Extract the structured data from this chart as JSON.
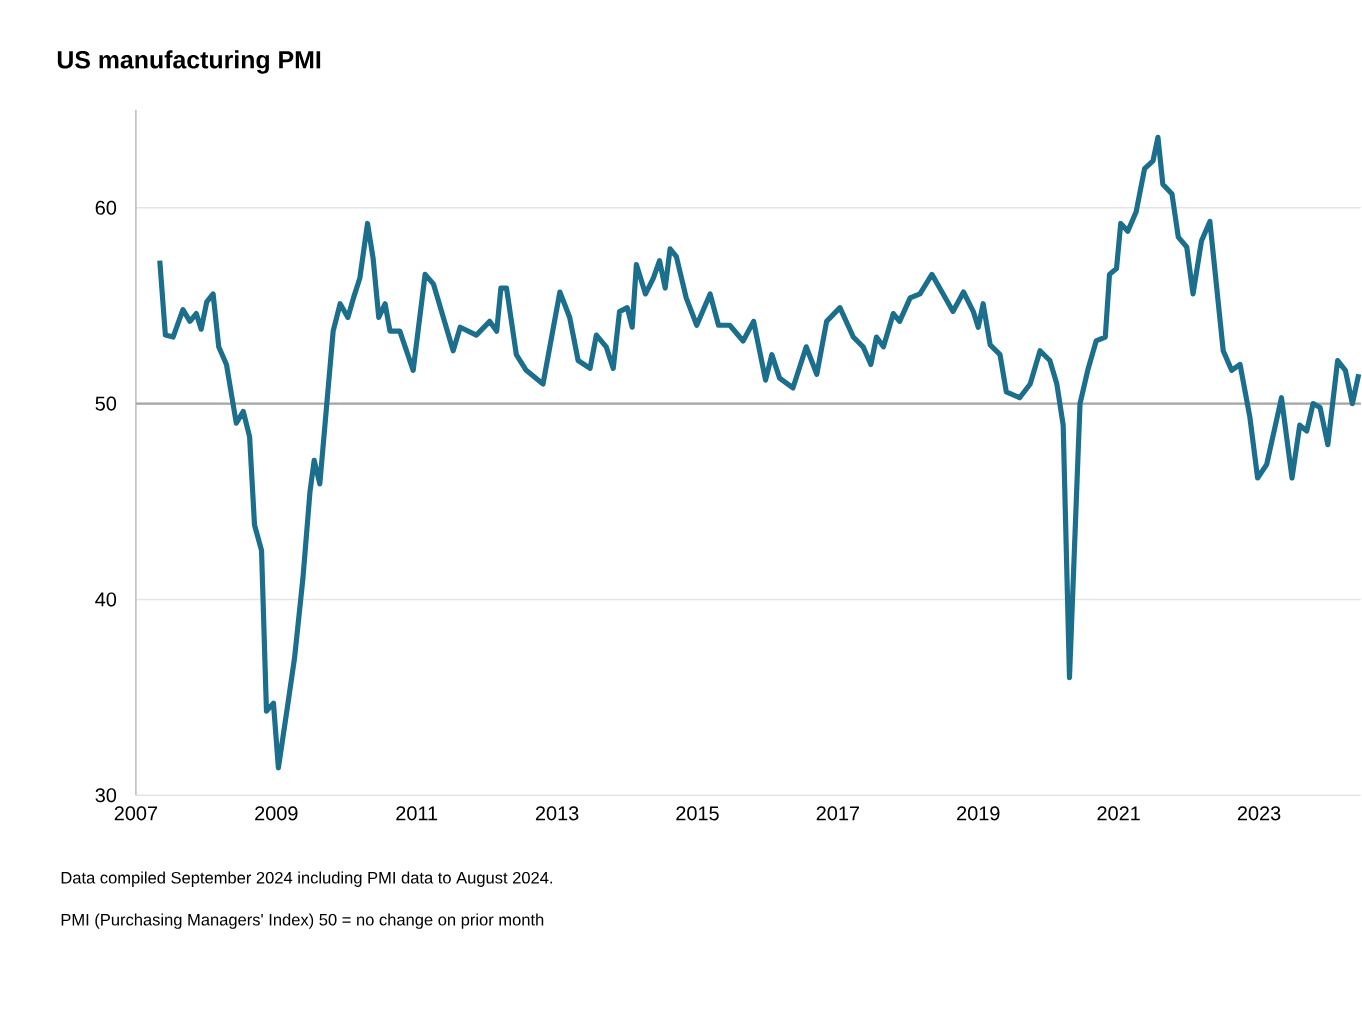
{
  "chart_data": {
    "type": "line",
    "title": "US manufacturing PMI",
    "annotations": [
      "Data compiled September 2024 including PMI data to August 2024.",
      "PMI (Purchasing Managers' Index) 50 = no change on prior month"
    ],
    "xlim": [
      2007,
      2024.45
    ],
    "xticks": [
      2007,
      2009,
      2011,
      2013,
      2015,
      2017,
      2019,
      2021,
      2023
    ],
    "ylim": [
      30,
      65
    ],
    "yticks": [
      30,
      40,
      50,
      60
    ],
    "grid": "y",
    "ref_lines": [
      {
        "axis": "y",
        "value": 50,
        "color": "#a6a6a6"
      }
    ],
    "series": [
      {
        "color": "#1b6f8c",
        "x": [
          2007.34,
          2007.42,
          2007.53,
          2007.67,
          2007.77,
          2007.86,
          2007.93,
          2008.01,
          2008.1,
          2008.18,
          2008.29,
          2008.43,
          2008.53,
          2008.62,
          2008.69,
          2008.79,
          2008.86,
          2008.96,
          2009.03,
          2009.15,
          2009.26,
          2009.38,
          2009.48,
          2009.54,
          2009.62,
          2009.72,
          2009.81,
          2009.91,
          2010.02,
          2010.1,
          2010.19,
          2010.3,
          2010.38,
          2010.46,
          2010.55,
          2010.62,
          2010.76,
          2010.95,
          2011.12,
          2011.24,
          2011.38,
          2011.52,
          2011.62,
          2011.85,
          2012.04,
          2012.14,
          2012.2,
          2012.28,
          2012.42,
          2012.56,
          2012.8,
          2013.04,
          2013.18,
          2013.3,
          2013.47,
          2013.56,
          2013.7,
          2013.8,
          2013.89,
          2014.0,
          2014.07,
          2014.13,
          2014.26,
          2014.37,
          2014.46,
          2014.54,
          2014.61,
          2014.7,
          2014.84,
          2014.99,
          2015.18,
          2015.3,
          2015.46,
          2015.65,
          2015.8,
          2015.97,
          2016.06,
          2016.17,
          2016.36,
          2016.55,
          2016.7,
          2016.84,
          2017.03,
          2017.22,
          2017.36,
          2017.47,
          2017.55,
          2017.65,
          2017.79,
          2017.88,
          2018.03,
          2018.17,
          2018.34,
          2018.5,
          2018.64,
          2018.79,
          2018.93,
          2019.0,
          2019.07,
          2019.17,
          2019.31,
          2019.4,
          2019.59,
          2019.74,
          2019.88,
          2020.02,
          2020.12,
          2020.21,
          2020.3,
          2020.45,
          2020.56,
          2020.68,
          2020.81,
          2020.87,
          2020.97,
          2021.03,
          2021.13,
          2021.25,
          2021.37,
          2021.49,
          2021.56,
          2021.63,
          2021.76,
          2021.85,
          2021.97,
          2022.06,
          2022.18,
          2022.3,
          2022.49,
          2022.61,
          2022.73,
          2022.87,
          2022.98,
          2023.11,
          2023.32,
          2023.47,
          2023.58,
          2023.68,
          2023.77,
          2023.87,
          2023.98,
          2024.12,
          2024.23,
          2024.33,
          2024.42
        ],
        "values": [
          57.3,
          53.5,
          53.4,
          54.8,
          54.2,
          54.6,
          53.8,
          55.2,
          55.6,
          52.9,
          52.0,
          49.0,
          49.6,
          48.3,
          43.8,
          42.5,
          34.3,
          34.7,
          31.4,
          34.3,
          37.0,
          41.1,
          45.5,
          47.1,
          45.9,
          50.0,
          53.7,
          55.1,
          54.4,
          55.4,
          56.4,
          59.2,
          57.4,
          54.4,
          55.1,
          53.7,
          53.7,
          51.7,
          56.6,
          56.1,
          54.4,
          52.7,
          53.9,
          53.5,
          54.2,
          53.7,
          55.9,
          55.9,
          52.5,
          51.7,
          51.0,
          55.7,
          54.4,
          52.2,
          51.8,
          53.5,
          52.9,
          51.8,
          54.7,
          54.9,
          53.9,
          57.1,
          55.6,
          56.4,
          57.3,
          55.9,
          57.9,
          57.5,
          55.4,
          54.0,
          55.6,
          54.0,
          54.0,
          53.2,
          54.2,
          51.2,
          52.5,
          51.3,
          50.8,
          52.9,
          51.5,
          54.2,
          54.9,
          53.4,
          52.9,
          52.0,
          53.4,
          52.9,
          54.6,
          54.2,
          55.4,
          55.6,
          56.6,
          55.6,
          54.7,
          55.7,
          54.7,
          53.9,
          55.1,
          53.0,
          52.5,
          50.6,
          50.3,
          51.0,
          52.7,
          52.2,
          51.0,
          48.9,
          36.0,
          50.0,
          51.7,
          53.2,
          53.4,
          56.6,
          56.9,
          59.2,
          58.8,
          59.8,
          62.0,
          62.4,
          63.6,
          61.2,
          60.7,
          58.5,
          58.0,
          55.6,
          58.3,
          59.3,
          52.7,
          51.7,
          52.0,
          49.3,
          46.2,
          46.9,
          50.3,
          46.2,
          48.9,
          48.6,
          50.0,
          49.8,
          47.9,
          52.2,
          51.7,
          50.0,
          51.5
        ]
      }
    ]
  }
}
